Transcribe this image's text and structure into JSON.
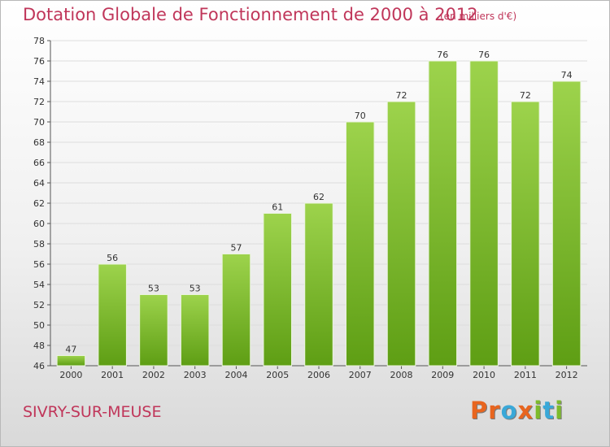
{
  "header": {
    "title": "Dotation Globale de Fonctionnement de 2000 à 2012",
    "subtitle": "(en milliers d'€)"
  },
  "footer": {
    "commune": "SIVRY-SUR-MEUSE",
    "brand_letters": [
      "P",
      "r",
      "o",
      "x",
      "i",
      "t",
      "i"
    ]
  },
  "colors": {
    "accent": "#c0365a",
    "bar_top": "#9dd34c",
    "bar_bottom": "#5e9e14",
    "grid": "#dddddd",
    "brand": [
      "#e8651f",
      "#e8651f",
      "#3aa8d8",
      "#e8651f",
      "#7dbb2b",
      "#3aa8d8",
      "#7dbb2b"
    ]
  },
  "chart_data": {
    "type": "bar",
    "title": "Dotation Globale de Fonctionnement de 2000 à 2012",
    "subtitle": "(en milliers d'€)",
    "categories": [
      "2000",
      "2001",
      "2002",
      "2003",
      "2004",
      "2005",
      "2006",
      "2007",
      "2008",
      "2009",
      "2010",
      "2011",
      "2012"
    ],
    "values": [
      47,
      56,
      53,
      53,
      57,
      61,
      62,
      70,
      72,
      76,
      76,
      72,
      74
    ],
    "data_labels": [
      "47",
      "56",
      "53",
      "53",
      "57",
      "61",
      "62",
      "70",
      "72",
      "76",
      "76",
      "72",
      "74"
    ],
    "ylim": [
      46,
      78
    ],
    "yticks": [
      "46",
      "48",
      "50",
      "52",
      "54",
      "56",
      "58",
      "60",
      "62",
      "64",
      "66",
      "68",
      "70",
      "72",
      "74",
      "76",
      "78"
    ],
    "xlabel": "",
    "ylabel": "",
    "grid": true,
    "legend": "none"
  }
}
